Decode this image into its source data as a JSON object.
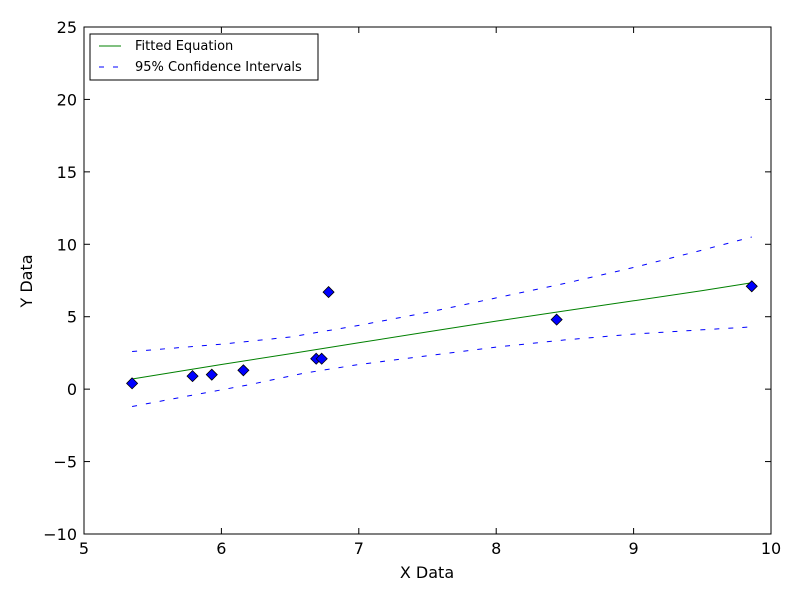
{
  "chart_data": {
    "type": "scatter",
    "title": "",
    "xlabel": "X Data",
    "ylabel": "Y Data",
    "xlim": [
      5,
      10
    ],
    "ylim": [
      -10,
      25
    ],
    "xticks": [
      5,
      6,
      7,
      8,
      9,
      10
    ],
    "yticks": [
      -10,
      -5,
      0,
      5,
      10,
      15,
      20,
      25
    ],
    "xtick_labels": [
      "5",
      "6",
      "7",
      "8",
      "9",
      "10"
    ],
    "ytick_labels": [
      "−10",
      "−5",
      "0",
      "5",
      "10",
      "15",
      "20",
      "25"
    ],
    "grid": false,
    "legend_position": "top-left",
    "points": {
      "marker": "diamond",
      "color": "#0000ff",
      "x": [
        5.35,
        5.79,
        5.93,
        6.16,
        6.69,
        6.73,
        6.78,
        8.44,
        9.86
      ],
      "y": [
        0.4,
        0.9,
        1.0,
        1.3,
        2.1,
        2.1,
        6.7,
        4.8,
        7.1
      ]
    },
    "series": [
      {
        "name": "Fitted Equation",
        "style": "solid",
        "color": "#008000",
        "x": [
          5.35,
          6.0,
          6.5,
          7.0,
          7.5,
          8.0,
          8.5,
          9.0,
          9.5,
          9.86
        ],
        "y": [
          0.7,
          1.7,
          2.45,
          3.2,
          3.95,
          4.7,
          5.4,
          6.1,
          6.8,
          7.35
        ]
      },
      {
        "name": "95% Confidence Intervals",
        "style": "dashed",
        "color": "#0000ff",
        "x": [
          5.35,
          6.0,
          6.5,
          7.0,
          7.5,
          8.0,
          8.5,
          9.0,
          9.5,
          9.86
        ],
        "y": [
          2.6,
          3.1,
          3.6,
          4.4,
          5.3,
          6.3,
          7.3,
          8.4,
          9.6,
          10.5
        ]
      },
      {
        "name": "",
        "style": "dashed",
        "color": "#0000ff",
        "x": [
          5.35,
          5.8,
          6.2,
          6.6,
          7.0,
          7.5,
          8.0,
          8.5,
          9.0,
          9.5,
          9.86
        ],
        "y": [
          -1.2,
          -0.4,
          0.3,
          1.1,
          1.7,
          2.3,
          2.9,
          3.4,
          3.8,
          4.1,
          4.3
        ]
      }
    ]
  }
}
